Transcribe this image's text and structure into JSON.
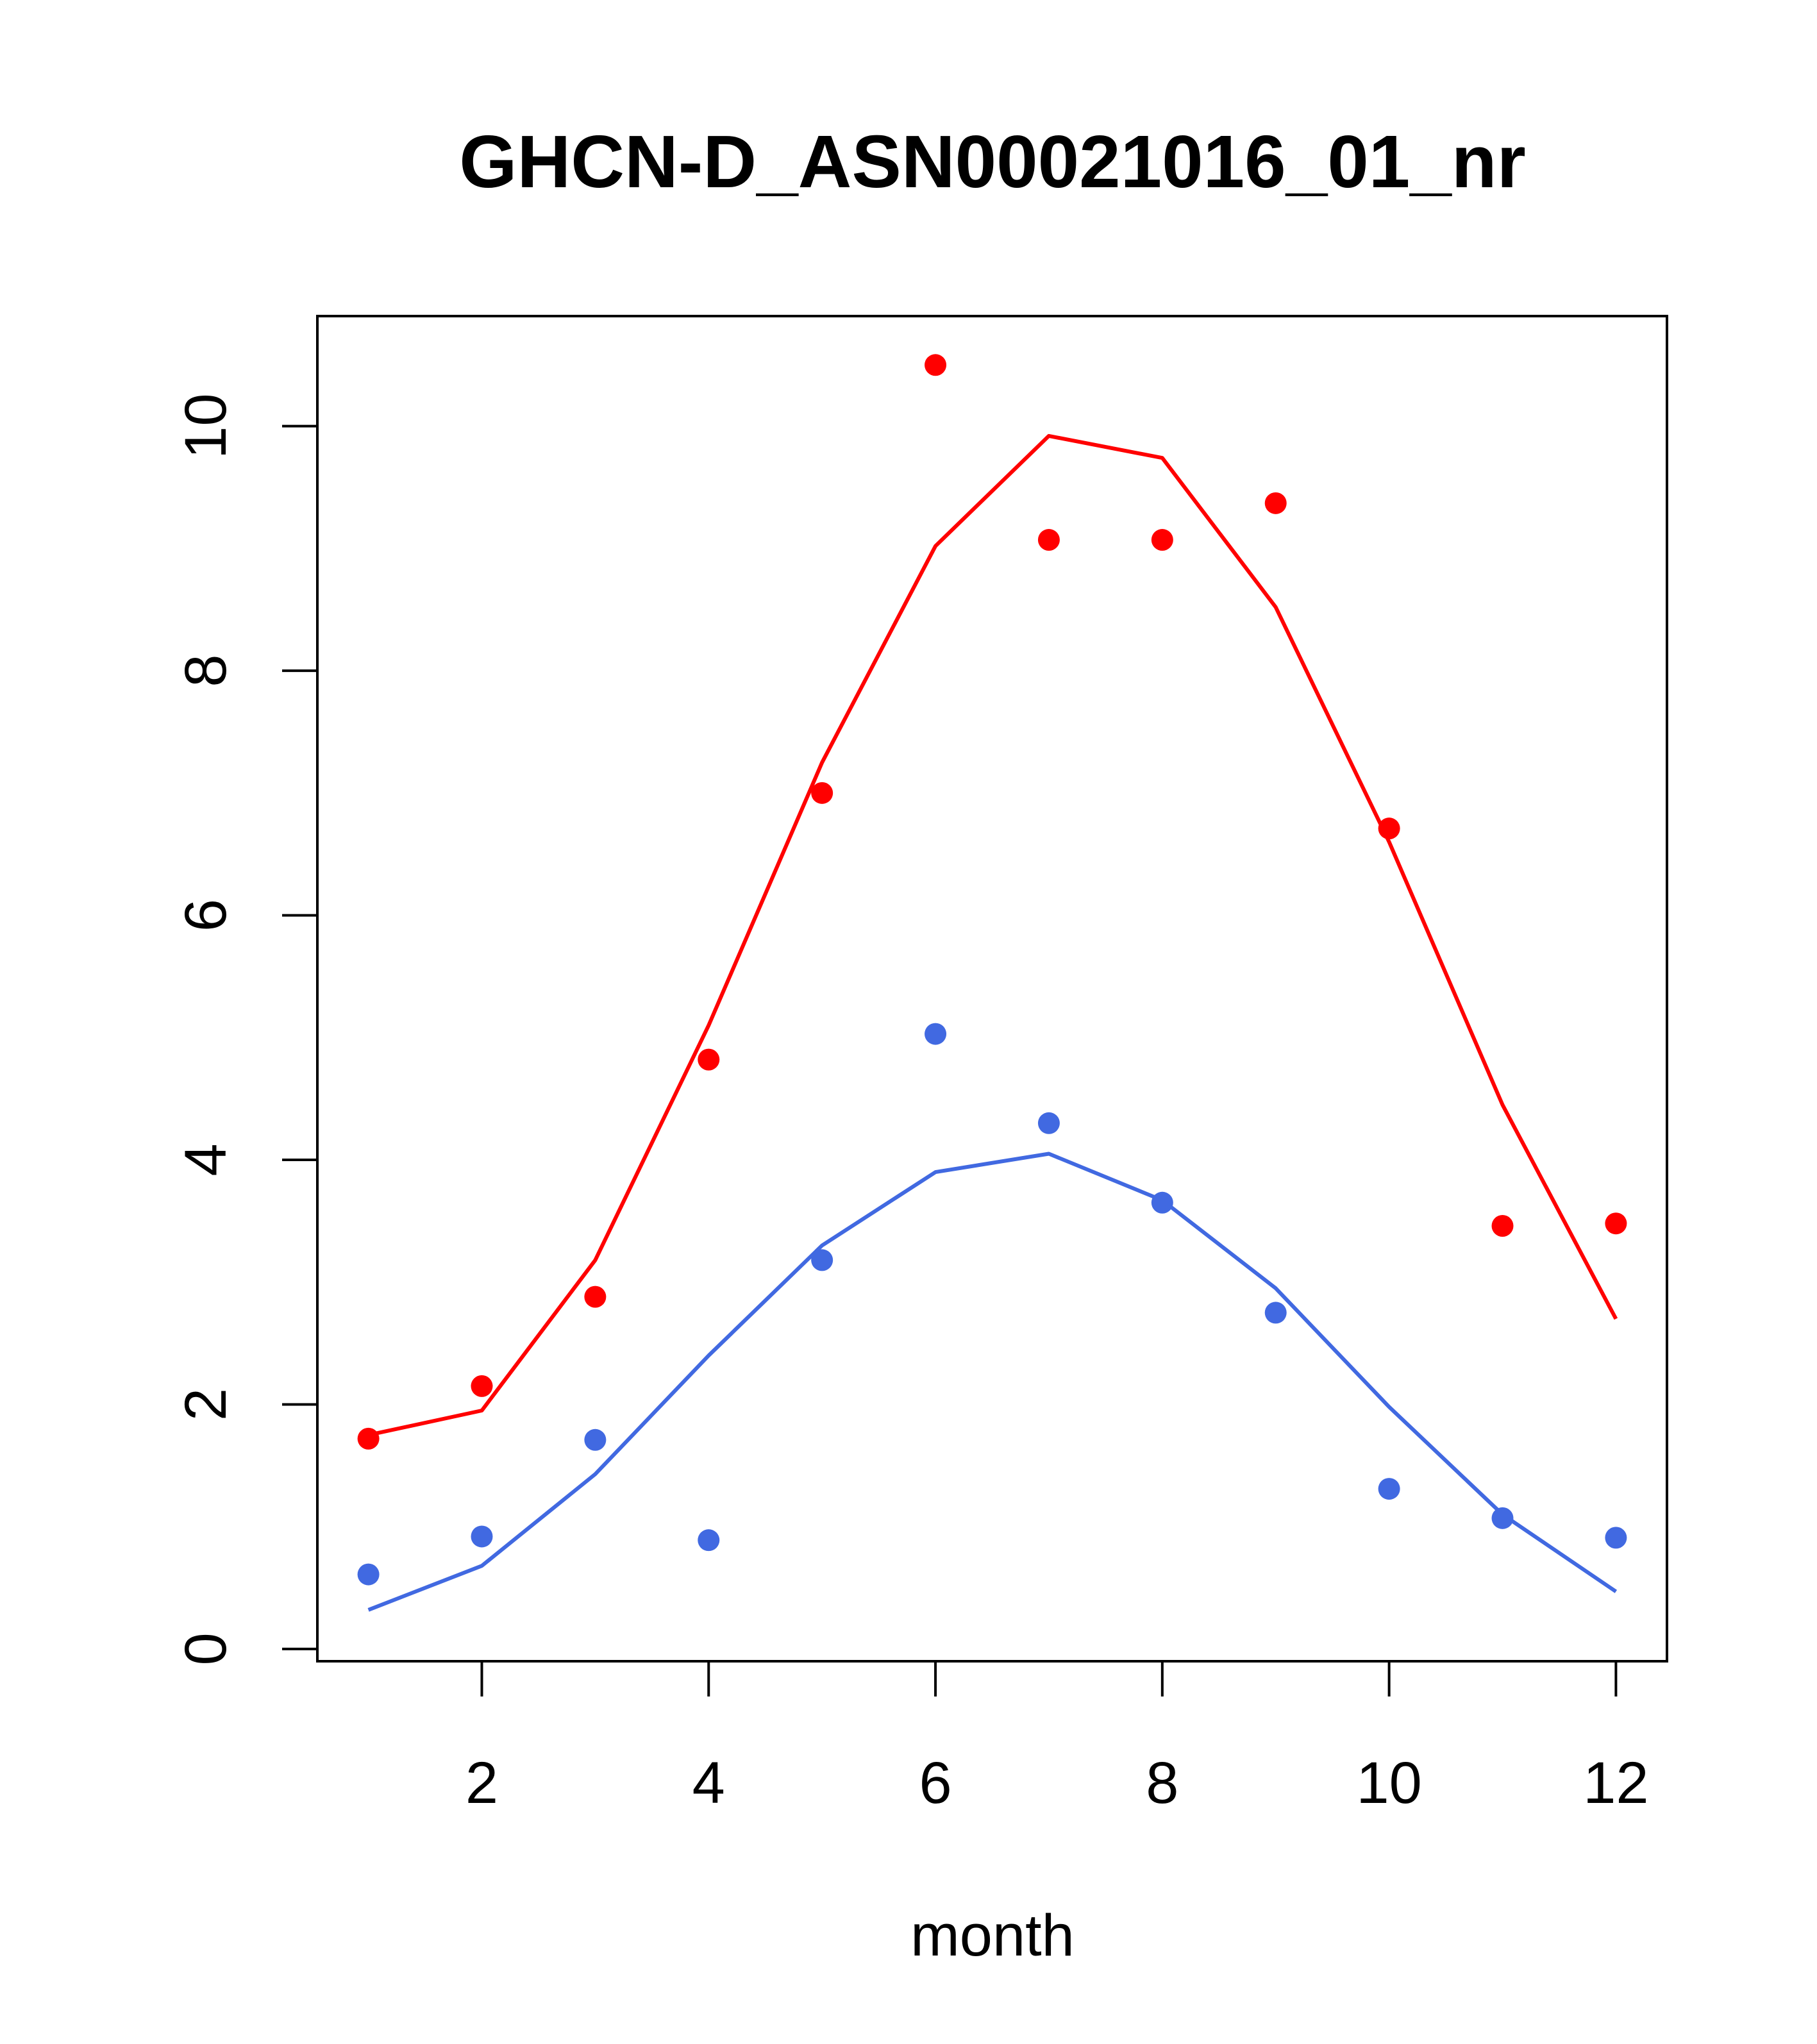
{
  "chart_data": {
    "type": "scatter",
    "title": "GHCN-D_ASN00021016_01_nr",
    "xlabel": "month",
    "ylabel": "",
    "xlim": [
      0.55,
      12.45
    ],
    "ylim": [
      -0.1,
      10.9
    ],
    "x_ticks": [
      2,
      4,
      6,
      8,
      10,
      12
    ],
    "y_ticks": [
      0,
      2,
      4,
      6,
      8,
      10
    ],
    "grid": false,
    "legend": "none",
    "x": [
      1,
      2,
      3,
      4,
      5,
      6,
      7,
      8,
      9,
      10,
      11,
      12
    ],
    "series": [
      {
        "color": "#ff0000",
        "points": [
          1.72,
          2.15,
          2.88,
          4.82,
          7.0,
          10.5,
          9.07,
          9.07,
          9.37,
          6.71,
          3.46,
          3.48
        ],
        "line": [
          1.75,
          1.95,
          3.18,
          5.1,
          7.25,
          9.02,
          9.92,
          9.74,
          8.52,
          6.6,
          4.45,
          2.7
        ]
      },
      {
        "color": "#4169e1",
        "points": [
          0.61,
          0.92,
          1.71,
          0.89,
          3.18,
          5.03,
          4.3,
          3.65,
          2.75,
          1.31,
          1.07,
          0.91
        ],
        "line": [
          0.32,
          0.68,
          1.43,
          2.4,
          3.3,
          3.9,
          4.05,
          3.67,
          2.95,
          1.98,
          1.1,
          0.47
        ]
      }
    ]
  }
}
